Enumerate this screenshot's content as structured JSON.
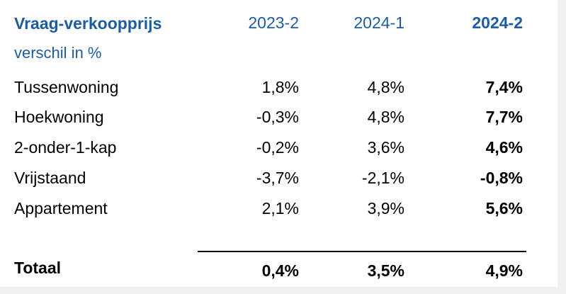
{
  "table": {
    "title": "Vraag-verkoopprijs",
    "subtitle": "verschil in %",
    "columns": [
      "2023-2",
      "2024-1",
      "2024-2"
    ],
    "rows": [
      {
        "label": "Tussenwoning",
        "values": [
          "1,8%",
          "4,8%",
          "7,4%"
        ]
      },
      {
        "label": "Hoekwoning",
        "values": [
          "-0,3%",
          "4,8%",
          "7,7%"
        ]
      },
      {
        "label": "2-onder-1-kap",
        "values": [
          "-0,2%",
          "3,6%",
          "4,6%"
        ]
      },
      {
        "label": "Vrijstaand",
        "values": [
          "-3,7%",
          "-2,1%",
          "-0,8%"
        ]
      },
      {
        "label": "Appartement",
        "values": [
          "2,1%",
          "3,9%",
          "5,6%"
        ]
      }
    ],
    "total": {
      "label": "Totaal",
      "values": [
        "0,4%",
        "3,5%",
        "4,9%"
      ]
    },
    "colors": {
      "header": "#1a5ca8",
      "text": "#000000"
    }
  }
}
